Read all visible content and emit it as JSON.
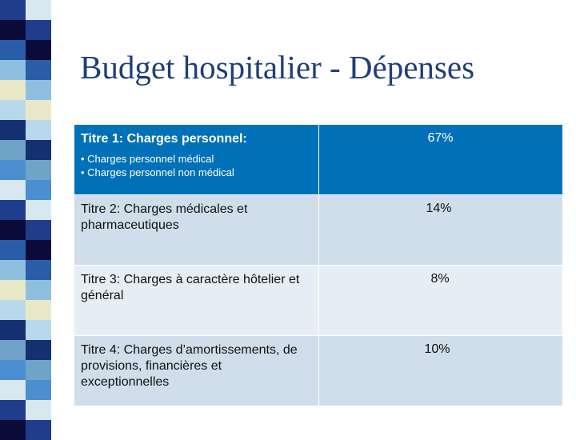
{
  "slide": {
    "title": "Budget hospitalier - Dépenses"
  },
  "table": {
    "rows": [
      {
        "label": "Titre 1: Charges  personnel:",
        "sub1": "• Charges personnel médical",
        "sub2": "• Charges personnel non médical",
        "value": "67%"
      },
      {
        "label": "Titre 2: Charges médicales et pharmaceutiques",
        "value": "14%"
      },
      {
        "label": "Titre 3: Charges à caractère hôtelier et général",
        "value": "8%"
      },
      {
        "label": "Titre 4: Charges d’amortissements, de provisions, financières et exceptionnelles",
        "value": "10%"
      }
    ]
  },
  "colors": {
    "header_row": "#0071b8",
    "row_light": "#cfdeea",
    "row_lighter": "#e6eef5",
    "title": "#1f3f7a"
  }
}
